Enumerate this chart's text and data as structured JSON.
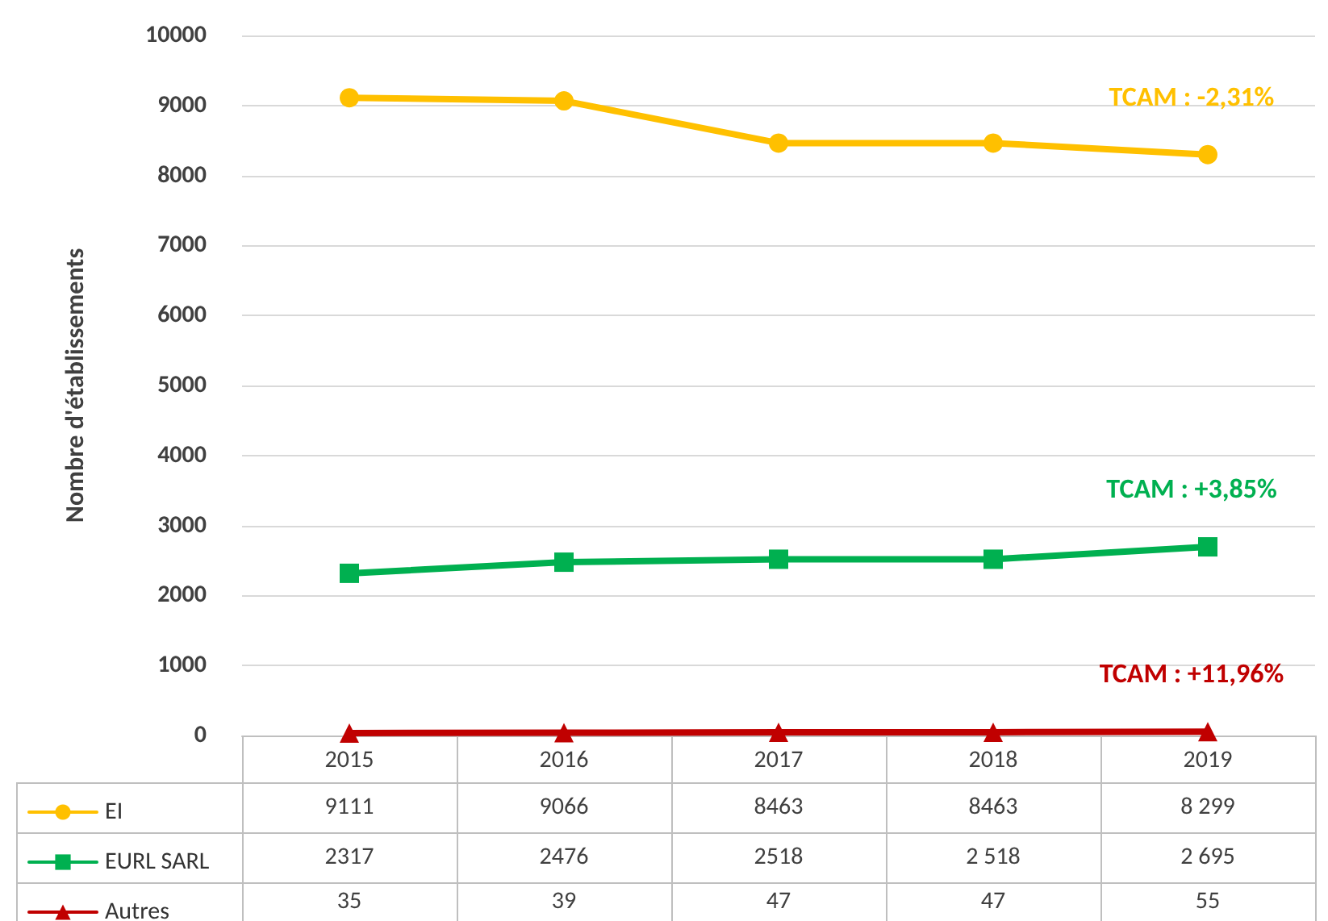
{
  "chart_data": {
    "type": "line",
    "ylabel": "Nombre d'établissements",
    "categories": [
      "2015",
      "2016",
      "2017",
      "2018",
      "2019"
    ],
    "series": [
      {
        "name": "EI",
        "color": "#ffc000",
        "marker": "circle",
        "values": [
          9111,
          9066,
          8463,
          8463,
          8299
        ],
        "value_labels": [
          "9111",
          "9066",
          "8463",
          "8463",
          "8 299"
        ]
      },
      {
        "name": "EURL SARL",
        "color": "#00b050",
        "marker": "square",
        "values": [
          2317,
          2476,
          2518,
          2518,
          2695
        ],
        "value_labels": [
          "2317",
          "2476",
          "2518",
          "2 518",
          "2 695"
        ]
      },
      {
        "name": "Autres",
        "color": "#c00000",
        "marker": "triangle",
        "values": [
          35,
          39,
          47,
          47,
          55
        ],
        "value_labels": [
          "35",
          "39",
          "47",
          "47",
          "55"
        ]
      }
    ],
    "ylim": [
      0,
      10000
    ],
    "yticks": [
      0,
      1000,
      2000,
      3000,
      4000,
      5000,
      6000,
      7000,
      8000,
      9000,
      10000
    ],
    "grid": "y",
    "legend": "bottom left",
    "line_style": "solid",
    "annotations": [
      "TCAM : -2,31%",
      "TCAM : +3,85%",
      "TCAM : +11,96%"
    ]
  }
}
